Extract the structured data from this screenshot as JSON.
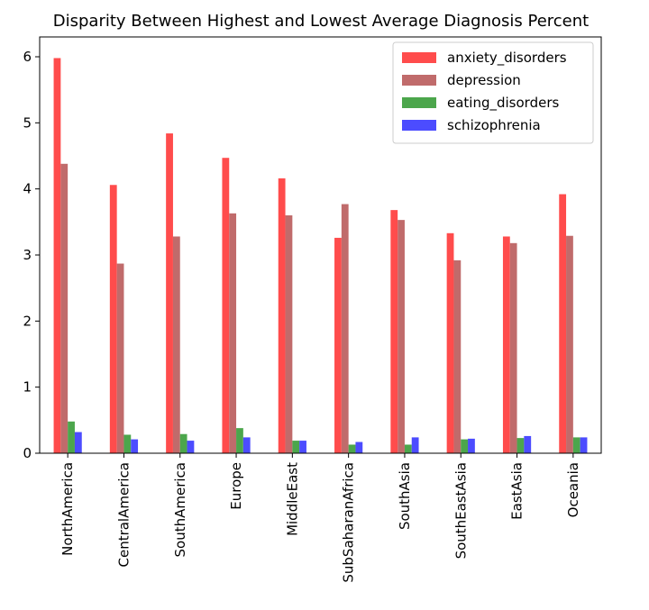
{
  "chart_data": {
    "type": "bar",
    "title": "Disparity Between Highest and Lowest Average Diagnosis Percent",
    "xlabel": "",
    "ylabel": "",
    "ylim": [
      0,
      6.3
    ],
    "yticks": [
      0,
      1,
      2,
      3,
      4,
      5,
      6
    ],
    "legend_position": "top-right",
    "grid": false,
    "categories": [
      "NorthAmerica",
      "CentralAmerica",
      "SouthAmerica",
      "Europe",
      "MiddleEast",
      "SubSaharanAfrica",
      "SouthAsia",
      "SouthEastAsia",
      "EastAsia",
      "Oceania"
    ],
    "series": [
      {
        "name": "anxiety_disorders",
        "color": "#ff4c4c",
        "values": [
          5.98,
          4.06,
          4.84,
          4.47,
          4.16,
          3.26,
          3.68,
          3.33,
          3.28,
          3.92
        ]
      },
      {
        "name": "depression",
        "color": "#c06b6b",
        "values": [
          4.38,
          2.87,
          3.28,
          3.63,
          3.6,
          3.77,
          3.53,
          2.92,
          3.18,
          3.29
        ]
      },
      {
        "name": "eating_disorders",
        "color": "#4ca64c",
        "values": [
          0.48,
          0.28,
          0.29,
          0.38,
          0.19,
          0.13,
          0.13,
          0.21,
          0.23,
          0.24
        ]
      },
      {
        "name": "schizophrenia",
        "color": "#4c4cff",
        "values": [
          0.32,
          0.21,
          0.19,
          0.24,
          0.19,
          0.17,
          0.24,
          0.22,
          0.26,
          0.24
        ]
      }
    ]
  }
}
